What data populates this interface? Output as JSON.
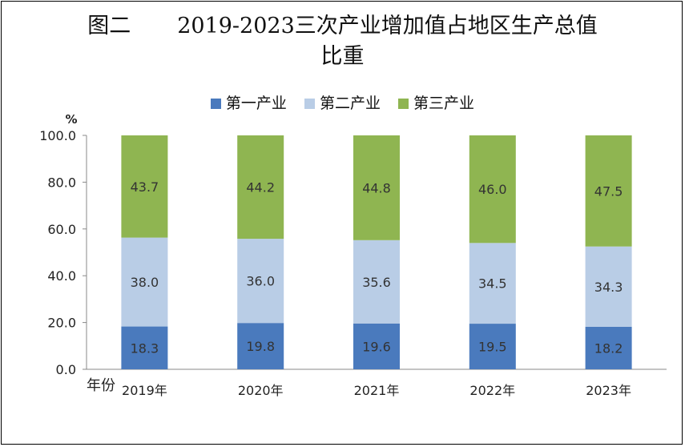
{
  "title": {
    "figure_label": "图二",
    "line1": "2019-2023三次产业增加值占地区生产总值",
    "line2": "比重"
  },
  "chart_data": {
    "type": "bar",
    "stacked": true,
    "categories": [
      "2019年",
      "2020年",
      "2021年",
      "2022年",
      "2023年"
    ],
    "series": [
      {
        "name": "第一产业",
        "color": "#4a7abd",
        "values": [
          18.3,
          19.8,
          19.6,
          19.5,
          18.2
        ]
      },
      {
        "name": "第二产业",
        "color": "#b9cde6",
        "values": [
          38.0,
          36.0,
          35.6,
          34.5,
          34.3
        ]
      },
      {
        "name": "第三产业",
        "color": "#8fb551",
        "values": [
          43.7,
          44.2,
          44.8,
          46.0,
          47.5
        ]
      }
    ],
    "ylim": [
      0,
      100
    ],
    "yticks": [
      "0.0",
      "20.0",
      "40.0",
      "60.0",
      "80.0",
      "100.0"
    ],
    "ylabel": "%",
    "xlabel": "年份",
    "legend_position": "top"
  }
}
